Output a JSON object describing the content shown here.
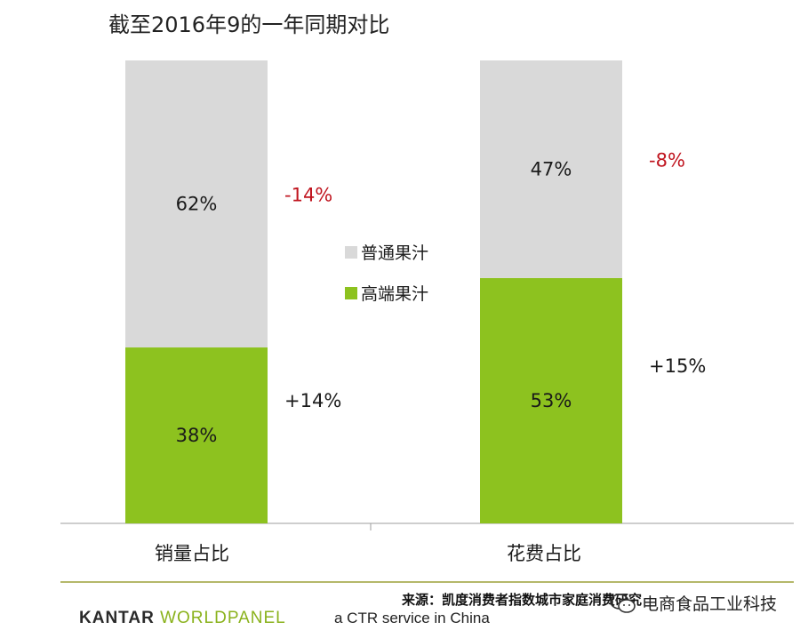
{
  "chart_data": {
    "type": "bar",
    "title": "截至2016年9的一年同期对比",
    "categories": [
      "销量占比",
      "花费占比"
    ],
    "series": [
      {
        "name": "高端果汁",
        "values": [
          38,
          53
        ],
        "labels": [
          "38%",
          "53%"
        ],
        "changes": [
          "+14%",
          "+15%"
        ]
      },
      {
        "name": "普通果汁",
        "values": [
          62,
          47
        ],
        "labels": [
          "62%",
          "47%"
        ],
        "changes": [
          "-14%",
          "-8%"
        ]
      }
    ],
    "stacked": true,
    "ylim": [
      0,
      100
    ],
    "grid": false,
    "legend": "center"
  },
  "colors": {
    "premium": "#8dc21f",
    "regular": "#d9d9d9",
    "negative_change": "#c0151f",
    "positive_change": "#1a1a1a",
    "axis": "#9e9e9e"
  },
  "footer": {
    "source": "来源：凯度消费者指数城市家庭消费研究",
    "brand_part1": "KANTAR ",
    "brand_part2": "WORLDPANEL",
    "brand_tagline": "a CTR service in China",
    "watermark": "电商食品工业科技",
    "watermark_icon": "wechat-icon"
  }
}
